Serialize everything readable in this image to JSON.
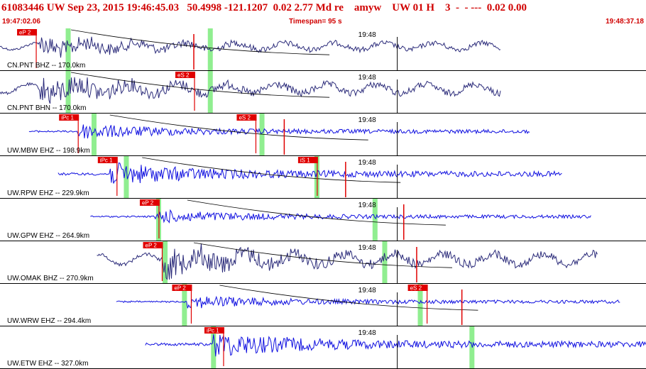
{
  "header": {
    "title": "61083446 UW Sep 23, 2015 19:46:45.03   50.4998 -121.1207  0.02 2.77 Md re    amyw    UW 01 H    3  -  - ---  0.02 0.00",
    "start_time": "19:47:02.06",
    "timespan": "Timespan=  95 s",
    "end_time": "19:48:37.18"
  },
  "time_marker": "19:48",
  "colors": {
    "header_text": "#d00000",
    "trace_dark": "#2b2b7a",
    "trace_blue": "#1010e0",
    "pick_box": "#e00000",
    "window_green": "#90ee90",
    "separator": "#000000"
  },
  "traces": [
    {
      "label": "CN.PNT BHZ -- 170.0km",
      "color": "dark",
      "start": 0.0,
      "end": 0.775,
      "onset": 0.06,
      "amp": 0.45,
      "picks": [
        "eP 2"
      ]
    },
    {
      "label": "CN.PNT BHN -- 170.0km",
      "color": "dark",
      "start": 0.0,
      "end": 0.775,
      "onset": 0.06,
      "amp": 0.6,
      "picks": [
        "eS 2"
      ]
    },
    {
      "label": "UW.MBW EHZ -- 198.9km",
      "color": "blue",
      "start": 0.045,
      "end": 0.82,
      "onset": 0.12,
      "amp": 0.35,
      "picks": [
        "iPc 1",
        "eS 2"
      ]
    },
    {
      "label": "UW.RPW EHZ -- 229.9km",
      "color": "blue",
      "start": 0.09,
      "end": 0.87,
      "onset": 0.17,
      "amp": 0.5,
      "picks": [
        "iPc 1",
        "iS 1"
      ]
    },
    {
      "label": "UW.GPW EHZ -- 264.9km",
      "color": "blue",
      "start": 0.14,
      "end": 0.915,
      "onset": 0.24,
      "amp": 0.3,
      "picks": [
        "eP 2"
      ]
    },
    {
      "label": "UW.OMAK BHZ -- 270.9km",
      "color": "dark",
      "start": 0.15,
      "end": 0.925,
      "onset": 0.25,
      "amp": 0.7,
      "picks": [
        "eP 2"
      ]
    },
    {
      "label": "UW.WRW EHZ -- 294.4km",
      "color": "blue",
      "start": 0.18,
      "end": 0.96,
      "onset": 0.29,
      "amp": 0.3,
      "picks": [
        "eP 2",
        "eS 2"
      ]
    },
    {
      "label": "UW.ETW EHZ -- 327.0km",
      "color": "blue",
      "start": 0.225,
      "end": 1.0,
      "onset": 0.33,
      "amp": 0.55,
      "picks": [
        "iPc 1"
      ]
    }
  ]
}
